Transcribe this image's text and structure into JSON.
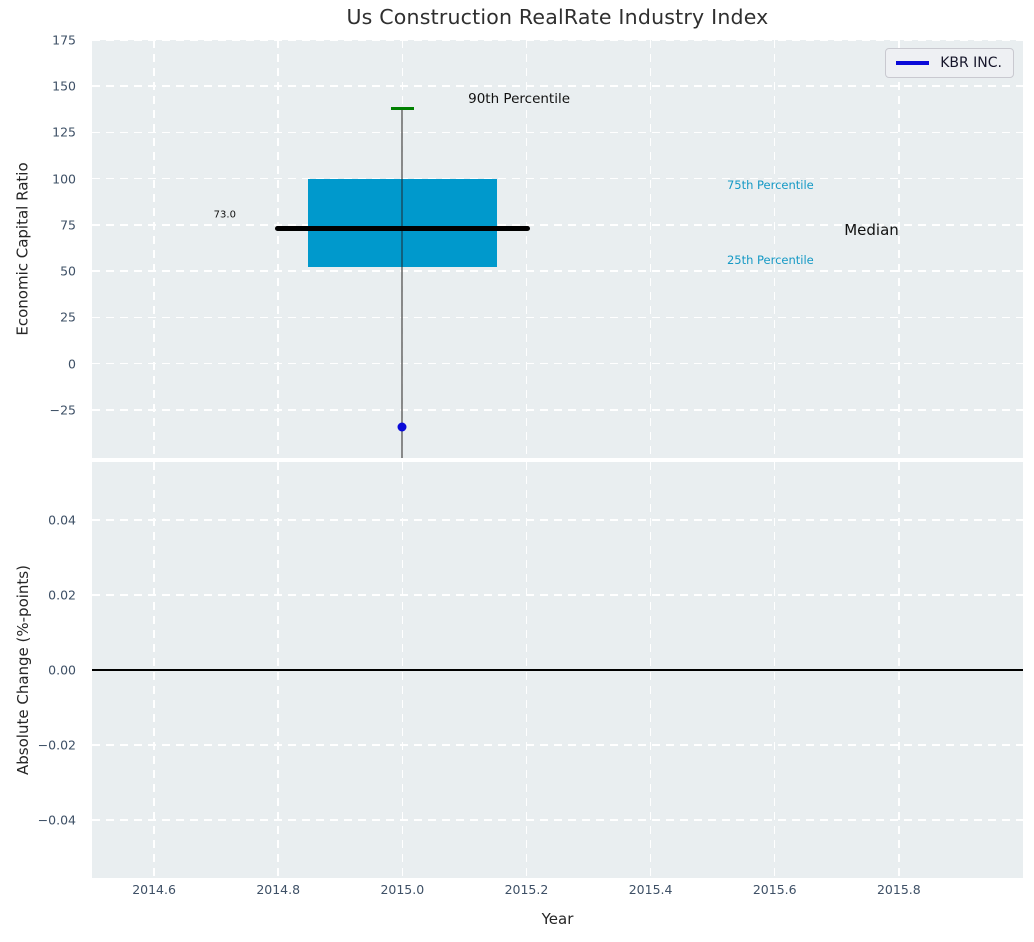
{
  "figure": {
    "title": "Us Construction RealRate Industry Index",
    "colors": {
      "axes_bg": "#e9eef0",
      "grid": "#ffffff",
      "tick_label": "#3e5066",
      "title_text": "#2f2f2f",
      "box_fill": "#0099cc",
      "median_line": "#000000",
      "whisker": "#6e6e6e",
      "cap_green": "#008000",
      "kbr_blue": "#0a0ad8",
      "percentile_label": "#1599c5",
      "annotation_black": "#111111",
      "zero_line": "#000000"
    }
  },
  "legend": {
    "label": "KBR INC."
  },
  "x_axis": {
    "label": "Year",
    "ticks": [
      {
        "v": 2014.6,
        "label": "2014.6"
      },
      {
        "v": 2014.8,
        "label": "2014.8"
      },
      {
        "v": 2015.0,
        "label": "2015.0"
      },
      {
        "v": 2015.2,
        "label": "2015.2"
      },
      {
        "v": 2015.4,
        "label": "2015.4"
      },
      {
        "v": 2015.6,
        "label": "2015.6"
      },
      {
        "v": 2015.8,
        "label": "2015.8"
      }
    ]
  },
  "chart_data": [
    {
      "type": "bar",
      "subtype": "boxplot-with-point",
      "title": "Us Construction RealRate Industry Index",
      "ylabel": "Economic Capital Ratio",
      "xlim": [
        2014.5,
        2016.0
      ],
      "ylim": [
        -51,
        175
      ],
      "grid": "white dashed, both axes",
      "yticks": [
        {
          "v": 175,
          "label": "175"
        },
        {
          "v": 150,
          "label": "150"
        },
        {
          "v": 125,
          "label": "125"
        },
        {
          "v": 100,
          "label": "100"
        },
        {
          "v": 75,
          "label": "75"
        },
        {
          "v": 50,
          "label": "50"
        },
        {
          "v": 25,
          "label": "25"
        },
        {
          "v": 0,
          "label": "0"
        },
        {
          "v": -25,
          "label": "−25"
        }
      ],
      "box": {
        "center_x": 2015.0,
        "p90": 138,
        "p75": 100,
        "median": 73.0,
        "median_label": "73.0",
        "p25": 52,
        "lower_whisker": "clipped below axis bottom",
        "box_halfwidth": 0.152,
        "median_halfwidth": 0.205,
        "cap_halfwidth": 0.018
      },
      "points": [
        {
          "name": "KBR INC.",
          "x": 2015.0,
          "y": -34
        }
      ],
      "annotations": [
        {
          "text": "73.0",
          "x": 2014.714,
          "y": 80.5,
          "size": 10,
          "color": "#111111",
          "align": "center"
        },
        {
          "text": "90th Percentile",
          "x": 2015.106,
          "y": 143,
          "size": 13.5,
          "color": "#111111",
          "align": "left"
        },
        {
          "text": "75th Percentile",
          "x": 2015.523,
          "y": 96.5,
          "size": 11.5,
          "color": "#1599c5",
          "align": "left"
        },
        {
          "text": "Median",
          "x": 2015.712,
          "y": 72.5,
          "size": 15,
          "color": "#111111",
          "align": "left"
        },
        {
          "text": "25th Percentile",
          "x": 2015.523,
          "y": 56,
          "size": 11.5,
          "color": "#1599c5",
          "align": "left"
        }
      ],
      "legend_position": "upper right"
    },
    {
      "type": "line",
      "ylabel": "Absolute Change (%-points)",
      "xlabel": "Year",
      "xlim": [
        2014.5,
        2016.0
      ],
      "ylim": [
        -0.0555,
        0.0555
      ],
      "grid": "white dashed, both axes",
      "yticks": [
        {
          "v": 0.04,
          "label": "0.04"
        },
        {
          "v": 0.02,
          "label": "0.02"
        },
        {
          "v": 0.0,
          "label": "0.00"
        },
        {
          "v": -0.02,
          "label": "−0.02"
        },
        {
          "v": -0.04,
          "label": "−0.04"
        }
      ],
      "zero_line": 0.0,
      "series": []
    }
  ]
}
